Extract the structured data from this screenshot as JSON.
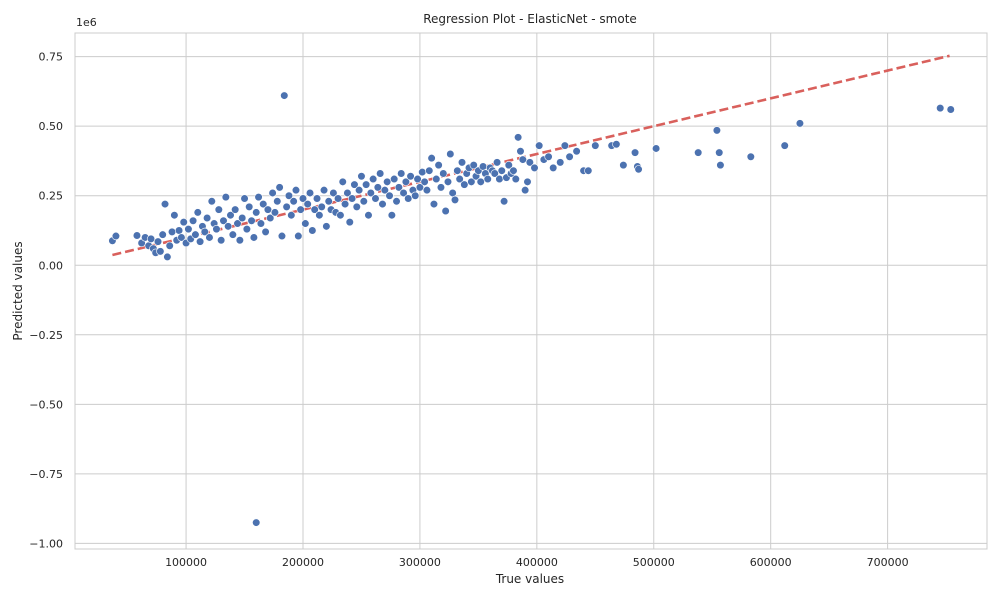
{
  "chart_data": {
    "type": "scatter",
    "title": "Regression Plot - ElasticNet - smote",
    "xlabel": "True values",
    "ylabel": "Predicted values",
    "y_offset_label": "1e6",
    "xlim": [
      5000,
      785000
    ],
    "ylim": [
      -1.02,
      0.835
    ],
    "xticks": [
      100000,
      200000,
      300000,
      400000,
      500000,
      600000,
      700000
    ],
    "xtick_labels": [
      "100000",
      "200000",
      "300000",
      "400000",
      "500000",
      "600000",
      "700000"
    ],
    "yticks": [
      0.75,
      0.5,
      0.25,
      0.0,
      -0.25,
      -0.5,
      -0.75,
      -1.0
    ],
    "ytick_labels": [
      "0.75",
      "0.50",
      "0.25",
      "0.00",
      "−0.25",
      "−0.50",
      "−0.75",
      "−1.00"
    ],
    "grid": true,
    "colors": {
      "points": "#4c72b0",
      "point_edge": "#ffffff",
      "reference_line": "#d9605c"
    },
    "reference_line": {
      "style": "dashed",
      "x": [
        37000,
        753000
      ],
      "y": [
        0.037,
        0.753
      ]
    },
    "points": [
      [
        37000,
        0.088
      ],
      [
        40000,
        0.105
      ],
      [
        58000,
        0.107
      ],
      [
        62000,
        0.08
      ],
      [
        65000,
        0.1
      ],
      [
        68000,
        0.07
      ],
      [
        70000,
        0.095
      ],
      [
        72000,
        0.06
      ],
      [
        74000,
        0.045
      ],
      [
        76000,
        0.085
      ],
      [
        78000,
        0.05
      ],
      [
        80000,
        0.11
      ],
      [
        82000,
        0.22
      ],
      [
        84000,
        0.03
      ],
      [
        86000,
        0.07
      ],
      [
        88000,
        0.12
      ],
      [
        90000,
        0.18
      ],
      [
        92000,
        0.09
      ],
      [
        94000,
        0.125
      ],
      [
        96000,
        0.1
      ],
      [
        98000,
        0.155
      ],
      [
        100000,
        0.08
      ],
      [
        102000,
        0.13
      ],
      [
        104000,
        0.095
      ],
      [
        106000,
        0.16
      ],
      [
        108000,
        0.11
      ],
      [
        110000,
        0.19
      ],
      [
        112000,
        0.085
      ],
      [
        114000,
        0.14
      ],
      [
        116000,
        0.12
      ],
      [
        118000,
        0.17
      ],
      [
        120000,
        0.1
      ],
      [
        122000,
        0.23
      ],
      [
        124000,
        0.15
      ],
      [
        126000,
        0.13
      ],
      [
        128000,
        0.2
      ],
      [
        130000,
        0.09
      ],
      [
        132000,
        0.16
      ],
      [
        134000,
        0.245
      ],
      [
        136000,
        0.14
      ],
      [
        138000,
        0.18
      ],
      [
        140000,
        0.11
      ],
      [
        142000,
        0.2
      ],
      [
        144000,
        0.15
      ],
      [
        146000,
        0.09
      ],
      [
        148000,
        0.17
      ],
      [
        150000,
        0.24
      ],
      [
        152000,
        0.13
      ],
      [
        154000,
        0.21
      ],
      [
        156000,
        0.16
      ],
      [
        158000,
        0.1
      ],
      [
        160000,
        0.19
      ],
      [
        162000,
        0.245
      ],
      [
        164000,
        0.15
      ],
      [
        166000,
        0.22
      ],
      [
        168000,
        0.12
      ],
      [
        170000,
        0.2
      ],
      [
        172000,
        0.17
      ],
      [
        174000,
        0.26
      ],
      [
        176000,
        0.19
      ],
      [
        178000,
        0.23
      ],
      [
        180000,
        0.28
      ],
      [
        182000,
        0.105
      ],
      [
        184000,
        0.61
      ],
      [
        186000,
        0.21
      ],
      [
        188000,
        0.25
      ],
      [
        190000,
        0.18
      ],
      [
        192000,
        0.23
      ],
      [
        194000,
        0.27
      ],
      [
        196000,
        0.105
      ],
      [
        198000,
        0.2
      ],
      [
        200000,
        0.24
      ],
      [
        202000,
        0.15
      ],
      [
        204000,
        0.22
      ],
      [
        206000,
        0.26
      ],
      [
        208000,
        0.125
      ],
      [
        210000,
        0.2
      ],
      [
        212000,
        0.24
      ],
      [
        214000,
        0.18
      ],
      [
        216000,
        0.21
      ],
      [
        218000,
        0.27
      ],
      [
        220000,
        0.14
      ],
      [
        222000,
        0.23
      ],
      [
        224000,
        0.2
      ],
      [
        226000,
        0.26
      ],
      [
        228000,
        0.19
      ],
      [
        230000,
        0.24
      ],
      [
        232000,
        0.18
      ],
      [
        234000,
        0.3
      ],
      [
        236000,
        0.22
      ],
      [
        238000,
        0.26
      ],
      [
        240000,
        0.155
      ],
      [
        242000,
        0.24
      ],
      [
        244000,
        0.29
      ],
      [
        246000,
        0.21
      ],
      [
        248000,
        0.27
      ],
      [
        250000,
        0.32
      ],
      [
        252000,
        0.23
      ],
      [
        254000,
        0.29
      ],
      [
        256000,
        0.18
      ],
      [
        258000,
        0.26
      ],
      [
        260000,
        0.31
      ],
      [
        262000,
        0.24
      ],
      [
        264000,
        0.28
      ],
      [
        266000,
        0.33
      ],
      [
        268000,
        0.22
      ],
      [
        270000,
        0.27
      ],
      [
        272000,
        0.3
      ],
      [
        274000,
        0.25
      ],
      [
        276000,
        0.18
      ],
      [
        278000,
        0.31
      ],
      [
        280000,
        0.23
      ],
      [
        282000,
        0.28
      ],
      [
        284000,
        0.33
      ],
      [
        286000,
        0.26
      ],
      [
        288000,
        0.3
      ],
      [
        290000,
        0.24
      ],
      [
        292000,
        0.32
      ],
      [
        294000,
        0.27
      ],
      [
        296000,
        0.25
      ],
      [
        298000,
        0.31
      ],
      [
        300000,
        0.28
      ],
      [
        302000,
        0.335
      ],
      [
        304000,
        0.3
      ],
      [
        306000,
        0.27
      ],
      [
        308000,
        0.34
      ],
      [
        310000,
        0.385
      ],
      [
        312000,
        0.22
      ],
      [
        314000,
        0.31
      ],
      [
        316000,
        0.36
      ],
      [
        318000,
        0.28
      ],
      [
        320000,
        0.33
      ],
      [
        322000,
        0.195
      ],
      [
        324000,
        0.3
      ],
      [
        326000,
        0.4
      ],
      [
        328000,
        0.26
      ],
      [
        330000,
        0.235
      ],
      [
        332000,
        0.34
      ],
      [
        334000,
        0.31
      ],
      [
        336000,
        0.37
      ],
      [
        338000,
        0.29
      ],
      [
        340000,
        0.33
      ],
      [
        342000,
        0.35
      ],
      [
        344000,
        0.3
      ],
      [
        346000,
        0.36
      ],
      [
        348000,
        0.32
      ],
      [
        350000,
        0.34
      ],
      [
        352000,
        0.3
      ],
      [
        354000,
        0.355
      ],
      [
        356000,
        0.33
      ],
      [
        358000,
        0.31
      ],
      [
        360000,
        0.35
      ],
      [
        362000,
        0.34
      ],
      [
        364000,
        0.33
      ],
      [
        366000,
        0.37
      ],
      [
        368000,
        0.31
      ],
      [
        370000,
        0.34
      ],
      [
        372000,
        0.23
      ],
      [
        374000,
        0.315
      ],
      [
        376000,
        0.36
      ],
      [
        378000,
        0.33
      ],
      [
        380000,
        0.34
      ],
      [
        382000,
        0.31
      ],
      [
        384000,
        0.46
      ],
      [
        386000,
        0.41
      ],
      [
        388000,
        0.38
      ],
      [
        390000,
        0.27
      ],
      [
        392000,
        0.3
      ],
      [
        394000,
        0.37
      ],
      [
        398000,
        0.35
      ],
      [
        402000,
        0.43
      ],
      [
        406000,
        0.38
      ],
      [
        410000,
        0.39
      ],
      [
        414000,
        0.35
      ],
      [
        420000,
        0.37
      ],
      [
        424000,
        0.43
      ],
      [
        428000,
        0.39
      ],
      [
        434000,
        0.41
      ],
      [
        440000,
        0.34
      ],
      [
        444000,
        0.34
      ],
      [
        450000,
        0.43
      ],
      [
        464000,
        0.43
      ],
      [
        468000,
        0.435
      ],
      [
        474000,
        0.36
      ],
      [
        484000,
        0.405
      ],
      [
        486000,
        0.355
      ],
      [
        487000,
        0.345
      ],
      [
        502000,
        0.42
      ],
      [
        538000,
        0.405
      ],
      [
        554000,
        0.485
      ],
      [
        556000,
        0.405
      ],
      [
        557000,
        0.36
      ],
      [
        583000,
        0.39
      ],
      [
        612000,
        0.43
      ],
      [
        625000,
        0.51
      ],
      [
        745000,
        0.565
      ],
      [
        754000,
        0.56
      ],
      [
        160000,
        -0.925
      ]
    ]
  }
}
